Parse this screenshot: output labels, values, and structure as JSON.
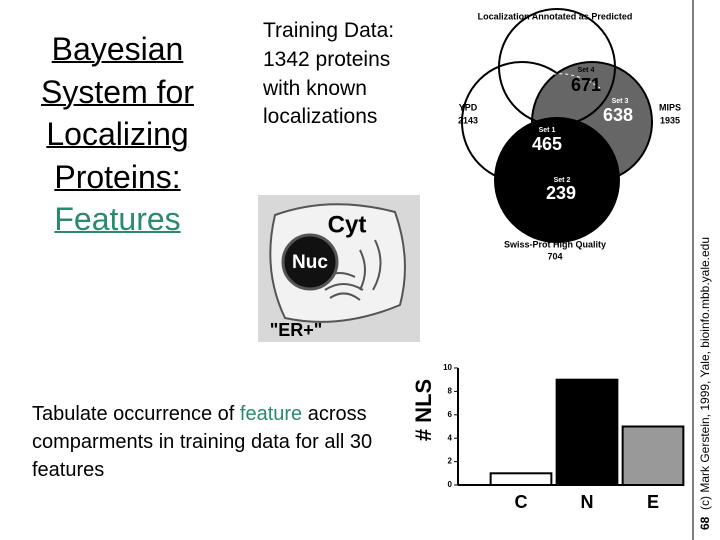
{
  "title": {
    "lines": [
      "Bayesian",
      "System for",
      "Localizing",
      "Proteins:",
      "Features"
    ]
  },
  "training_text": "Training Data: 1342 proteins with known localizations",
  "venn": {
    "title": "Localization Annotated as Predicted",
    "sets": [
      {
        "name": "YPD",
        "count": 2143
      },
      {
        "name": "MIPS",
        "count": 1935
      },
      {
        "name": "Swiss-Prot High Quality",
        "count": 704
      }
    ],
    "regions": [
      {
        "name": "Set 4",
        "count": 671
      },
      {
        "name": "Set 3",
        "count": 638
      },
      {
        "name": "Set 1",
        "count": 465
      },
      {
        "name": "Set 2",
        "count": 239
      }
    ]
  },
  "cell": {
    "labels": [
      "Cyt",
      "Nuc",
      "\"ER+\""
    ]
  },
  "description": {
    "parts": [
      "Tabulate occurrence of ",
      "feature",
      " across comparments in training data for all 30 features"
    ]
  },
  "chart_data": {
    "type": "bar",
    "ylabel": "# NLS",
    "categories": [
      "C",
      "N",
      "E"
    ],
    "values": [
      1,
      9,
      5
    ],
    "colors": [
      "#ffffff",
      "#000000",
      "#999999"
    ],
    "ylim": [
      0,
      10
    ],
    "yticks": [
      0,
      2,
      4,
      6,
      8,
      10
    ]
  },
  "credit": {
    "page": "68",
    "text": "(c) Mark Gerstein, 1999, Yale, bioinfo.mbb.yale.edu"
  }
}
